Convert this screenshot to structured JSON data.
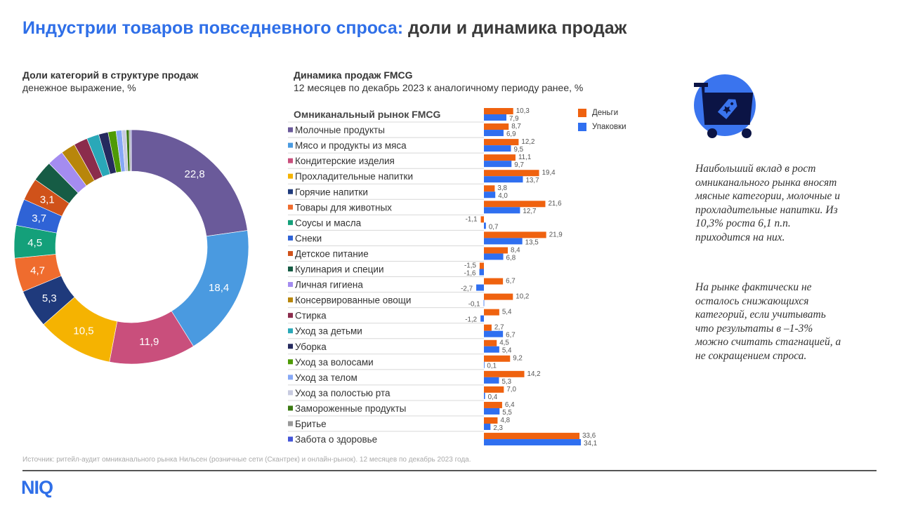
{
  "title": {
    "accent": "Индустрии товаров повседневного спроса:",
    "rest": " доли и динамика продаж"
  },
  "left_panel": {
    "title": "Доли категорий в структуре продаж",
    "subtitle": "денежное выражение, %"
  },
  "right_panel": {
    "title": "Динамика продаж FMCG",
    "subtitle": "12 месяцев по декабрь 2023 к аналогичному периоду ранее, %"
  },
  "colors": {
    "money": "#ef620f",
    "packs": "#2f6ff0",
    "accent": "#2f6fe8"
  },
  "icon": "shopping-cart-tag-icon",
  "commentary": [
    "Наибольший вклад в рост омниканального рынка вносят мясные категории, молочные и прохладительные напитки. Из 10,3% роста 6,1 п.п. приходится на них.",
    "На рынке фактически не осталось снижающихся категорий, если учитывать что результаты в –1-3% можно считать стагнацией, а не сокращением спроса."
  ],
  "source": "Источник: ритейл-аудит омниканального рынка Нильсен (розничные сети (Скантрек) и онлайн-рынок). 12 месяцев по декабрь 2023 года.",
  "logo": "NIQ",
  "chart_data": [
    {
      "type": "pie",
      "title": "Доли категорий в структуре продаж",
      "subtitle": "денежное выражение, %",
      "donut": true,
      "categories": [
        "Молочные продукты",
        "Мясо и продукты из мяса",
        "Кондитерские изделия",
        "Прохладительные напитки",
        "Горячие напитки",
        "Товары для животных",
        "Соусы и масла",
        "Снеки",
        "Детское питание",
        "Кулинария и специи",
        "Личная гигиена",
        "Консервированные овощи",
        "Стирка",
        "Уход за детьми",
        "Уборка",
        "Уход за волосами",
        "Уход за телом",
        "Уход за полостью рта",
        "Замороженные продукты",
        "Бритье",
        "Забота о здоровье"
      ],
      "values": [
        22.8,
        18.4,
        11.9,
        10.5,
        5.3,
        4.7,
        4.5,
        3.7,
        3.1,
        2.9,
        2.3,
        2.0,
        1.9,
        1.7,
        1.3,
        1.1,
        0.8,
        0.6,
        0.4,
        0.2,
        0.1
      ],
      "labels_shown": [
        "22,8",
        "18,4",
        "11,9",
        "10,5",
        "5,3",
        "4,7",
        "4,5",
        "3,7",
        "3,1"
      ],
      "colors": [
        "#6a5a9a",
        "#4a9ae0",
        "#c94f7c",
        "#f5b301",
        "#1f3a7c",
        "#ef6c2e",
        "#14a07a",
        "#2f63d6",
        "#d0521a",
        "#165c45",
        "#a48cf0",
        "#b8860b",
        "#8b2c4c",
        "#2aa8b8",
        "#252a5e",
        "#4e9a06",
        "#86a8f6",
        "#c8cbe0",
        "#3b7a12",
        "#999999",
        "#4455d8"
      ]
    },
    {
      "type": "bar",
      "orientation": "horizontal",
      "title": "Динамика продаж FMCG",
      "subtitle": "12 месяцев по декабрь 2023 к аналогичному периоду ранее, %",
      "legend_position": "top-right",
      "categories": [
        "Омниканальный рынок FMCG",
        "Молочные продукты",
        "Мясо и продукты из мяса",
        "Кондитерские изделия",
        "Прохладительные напитки",
        "Горячие напитки",
        "Товары для животных",
        "Соусы и масла",
        "Снеки",
        "Детское питание",
        "Кулинария и специи",
        "Личная гигиена",
        "Консервированные овощи",
        "Стирка",
        "Уход за детьми",
        "Уборка",
        "Уход за волосами",
        "Уход за телом",
        "Уход за полостью рта",
        "Замороженные продукты",
        "Бритье",
        "Забота о здоровье"
      ],
      "series": [
        {
          "name": "Деньги",
          "values": [
            10.3,
            8.7,
            12.2,
            11.1,
            19.4,
            3.8,
            21.6,
            -1.1,
            21.9,
            8.4,
            -1.5,
            6.7,
            10.2,
            5.4,
            2.7,
            4.5,
            9.2,
            14.2,
            7.0,
            6.4,
            4.8,
            33.6
          ]
        },
        {
          "name": "Упаковки",
          "values": [
            7.9,
            6.9,
            9.5,
            9.7,
            13.7,
            4.0,
            12.7,
            0.7,
            13.5,
            6.8,
            -1.6,
            -2.7,
            -0.1,
            -1.2,
            6.7,
            5.4,
            0.1,
            5.3,
            0.4,
            5.5,
            2.3,
            34.1
          ]
        }
      ]
    }
  ]
}
